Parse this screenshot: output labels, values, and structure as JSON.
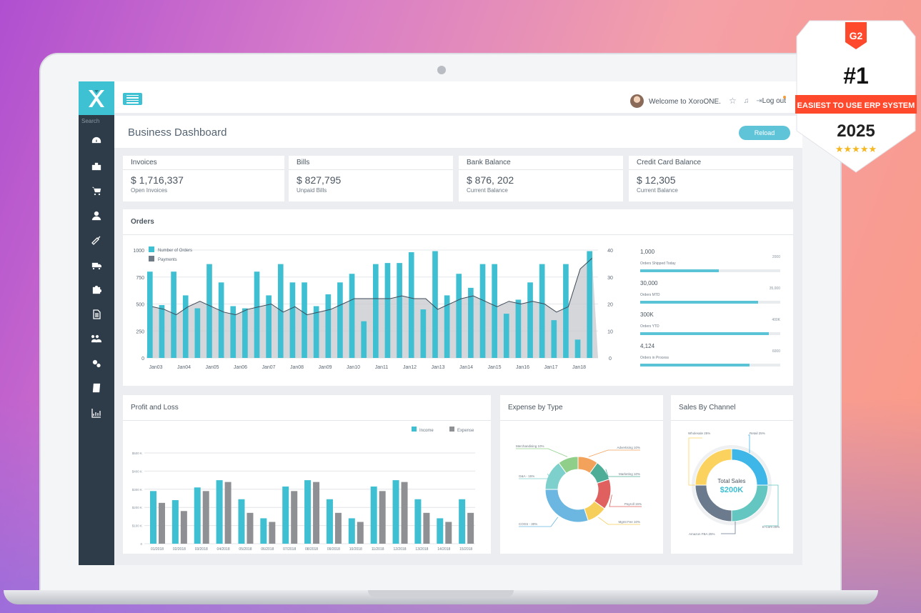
{
  "app": {
    "title": "Business Dashboard",
    "reload_label": "Reload",
    "search_label": "Search",
    "welcome": "Welcome to XoroONE.",
    "logout": "Log out"
  },
  "sidebar": {
    "icons": [
      "dashboard-icon",
      "briefcase-icon",
      "cart-icon",
      "user-icon",
      "wrench-icon",
      "truck-icon",
      "puzzle-icon",
      "document-icon",
      "users-icon",
      "gears-icon",
      "book-icon",
      "report-chart-icon"
    ]
  },
  "kpis": [
    {
      "title": "Invoices",
      "value": "$ 1,716,337",
      "sub": "Open Invoices"
    },
    {
      "title": "Bills",
      "value": "$ 827,795",
      "sub": "Unpaid Bills"
    },
    {
      "title": "Bank Balance",
      "value": "$ 876, 202",
      "sub": "Current Balance"
    },
    {
      "title": "Credit Card Balance",
      "value": "$ 12,305",
      "sub": "Current Balance"
    }
  ],
  "orders_panel": {
    "title": "Orders",
    "stats": [
      {
        "value": "1,000",
        "label": "Orders Shipped Today",
        "max": "2000",
        "fraction": 0.56
      },
      {
        "value": "30,000",
        "label": "Orders MTD",
        "max": "35,000",
        "fraction": 0.84
      },
      {
        "value": "300K",
        "label": "Orders YTD",
        "max": "400K",
        "fraction": 0.92
      },
      {
        "value": "4,124",
        "label": "Orders in Process",
        "max": "6000",
        "fraction": 0.78
      }
    ]
  },
  "pl_panel": {
    "title": "Profit and Loss"
  },
  "expense_panel": {
    "title": "Expense by Type"
  },
  "sales_panel": {
    "title": "Sales By Channel",
    "center_label": "Total Sales",
    "center_value": "$200K"
  },
  "badge": {
    "brand": "G2",
    "rank": "#1",
    "ribbon": "EASIEST TO USE ERP SYSTEM",
    "year": "2025",
    "stars": "★★★★★"
  },
  "chart_data": [
    {
      "type": "bar",
      "title": "Orders",
      "legend": [
        "Number of Orders",
        "Payments"
      ],
      "ylim": [
        0,
        1000
      ],
      "yticks": [
        0,
        250,
        500,
        750,
        1000
      ],
      "y2lim": [
        0,
        40
      ],
      "y2ticks": [
        0,
        10,
        20,
        30,
        40
      ],
      "xtick_labels": [
        "Jan03",
        "Jan04",
        "Jan05",
        "Jan06",
        "Jan07",
        "Jan08",
        "Jan09",
        "Jan10",
        "Jan11",
        "Jan12",
        "Jan13",
        "Jan14",
        "Jan15",
        "Jan16",
        "Jan17",
        "Jan18"
      ],
      "series": [
        {
          "name": "Number of Orders",
          "values": [
            800,
            490,
            800,
            580,
            460,
            870,
            700,
            480,
            460,
            800,
            580,
            870,
            700,
            700,
            480,
            590,
            700,
            780,
            340,
            870,
            880,
            880,
            980,
            450,
            990,
            580,
            780,
            650,
            870,
            870,
            410,
            540,
            700,
            870,
            350,
            870,
            170,
            990
          ]
        },
        {
          "name": "Payments",
          "values": [
            19,
            18,
            16,
            19,
            21,
            19,
            17,
            16,
            18,
            19,
            20,
            17,
            19,
            16,
            17,
            18,
            20,
            22,
            22,
            22,
            22,
            23,
            22,
            22,
            18,
            20,
            22,
            23,
            21,
            19,
            21,
            20,
            21,
            20,
            17,
            19,
            33,
            37
          ]
        }
      ]
    },
    {
      "type": "bar",
      "title": "Profit and Loss",
      "legend": [
        "Income",
        "Expense"
      ],
      "ylim": [
        0,
        500
      ],
      "ytick_labels": [
        "0",
        "$100 K",
        "$200 K",
        "$300 K",
        "$400 K",
        "$500 K"
      ],
      "categories": [
        "01/2018",
        "02/2018",
        "03/2018",
        "04/2018",
        "05/2018",
        "06/2018",
        "07/2018",
        "08/2018",
        "09/2018",
        "10/2018",
        "11/2018",
        "12/2018",
        "13/2018",
        "14/2018",
        "15/2018"
      ],
      "series": [
        {
          "name": "Income",
          "values": [
            290,
            240,
            310,
            350,
            245,
            140,
            315,
            350,
            245,
            140,
            315,
            350,
            245,
            140,
            245
          ]
        },
        {
          "name": "Expense",
          "values": [
            225,
            180,
            290,
            340,
            170,
            120,
            290,
            340,
            170,
            120,
            290,
            340,
            170,
            120,
            170
          ]
        }
      ]
    },
    {
      "type": "pie",
      "title": "Expense by Type",
      "labels": [
        "Advertising 10%",
        "Marketing 10%",
        "Payroll 15%",
        "Mgmt Fee 10%",
        "COGS - 30%",
        "G&A - 15%",
        "Merchandising 10%"
      ],
      "values": [
        10,
        10,
        15,
        10,
        30,
        15,
        10
      ],
      "colors": [
        "#f3a25c",
        "#4dad97",
        "#e0605f",
        "#f6cf5a",
        "#6bb7e1",
        "#7dd0cb",
        "#8fcf8a"
      ]
    },
    {
      "type": "pie",
      "title": "Sales By Channel",
      "labels": [
        "Retail 25%",
        "E-Com 25%",
        "Amazon FBA 25%",
        "Wholesale 25%"
      ],
      "values": [
        25,
        25,
        25,
        25
      ],
      "colors": [
        "#3fb6e8",
        "#64c6c1",
        "#6b7b8d",
        "#fcd25e"
      ]
    }
  ]
}
